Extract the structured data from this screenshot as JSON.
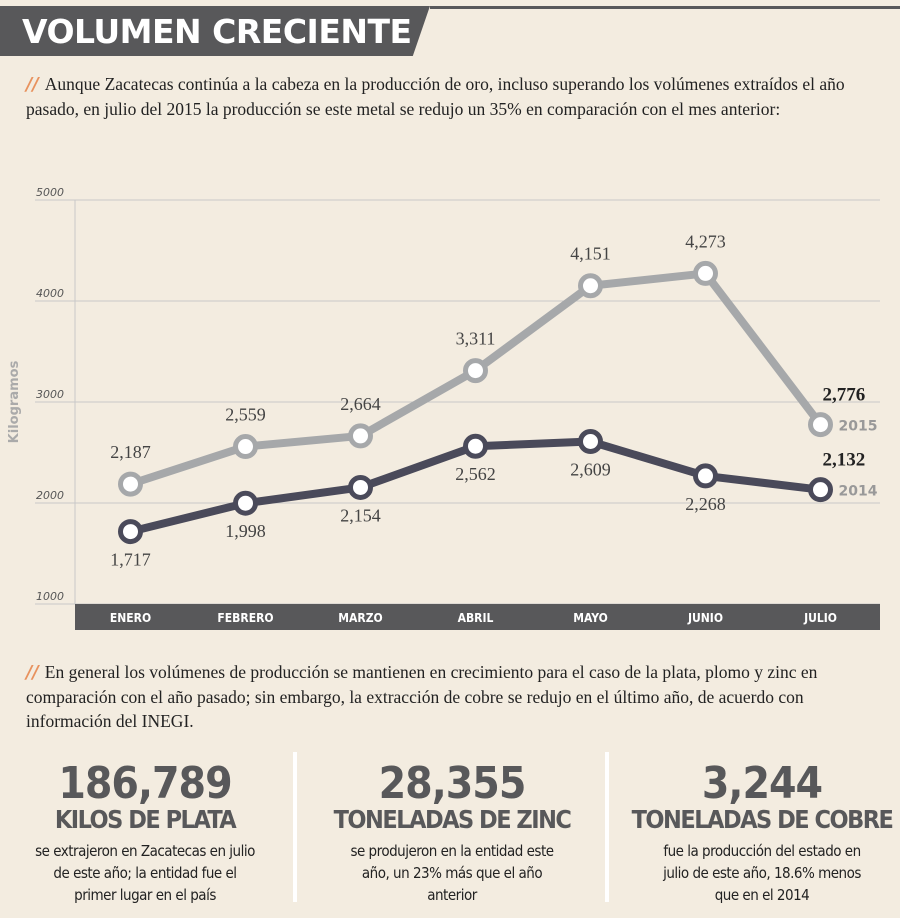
{
  "title": "VOLUMEN CRECIENTE",
  "section_mark": "//",
  "intro": "Aunque Zacatecas continúa a la cabeza en la producción de oro, incluso superando los volúmenes extraídos el año pasado, en julio del 2015 la producción se este metal se redujo un 35% en comparación con el mes anterior:",
  "chart_data": {
    "type": "line",
    "ylabel": "Kilogramos",
    "categories": [
      "ENERO",
      "FEBRERO",
      "MARZO",
      "ABRIL",
      "MAYO",
      "JUNIO",
      "JULIO"
    ],
    "series": [
      {
        "name": "2015",
        "color": "#a6a8aa",
        "values": [
          2187,
          2559,
          2664,
          3311,
          4151,
          4273,
          2776
        ],
        "value_labels": [
          "2,187",
          "2,559",
          "2,664",
          "3,311",
          "4,151",
          "4,273",
          "2,776"
        ]
      },
      {
        "name": "2014",
        "color": "#4a4a5a",
        "values": [
          1717,
          1998,
          2154,
          2562,
          2609,
          2268,
          2132
        ],
        "value_labels": [
          "1,717",
          "1,998",
          "2,154",
          "2,562",
          "2,609",
          "2,268",
          "2,132"
        ]
      }
    ],
    "ylim": [
      1000,
      5000
    ],
    "yticks": [
      1000,
      2000,
      3000,
      4000,
      5000
    ],
    "grid": true
  },
  "body": "En general los volúmenes de producción se mantienen en crecimiento para el caso de la plata, plomo y zinc en comparación con el año pasado; sin embargo, la extracción de cobre se redujo en el último año, de acuerdo con información del INEGI.",
  "stats": [
    {
      "number": "186,789",
      "label": "KILOS DE PLATA",
      "text": "se extrajeron en Zacatecas en julio de este año; la entidad fue el primer lugar en el país"
    },
    {
      "number": "28,355",
      "label": "TONELADAS DE ZINC",
      "text": "se produjeron en la entidad este año, un 23% más que el año anterior"
    },
    {
      "number": "3,244",
      "label": "TONELADAS DE COBRE",
      "text": "fue la producción del estado en julio de este año, 18.6% menos que en el 2014"
    }
  ]
}
